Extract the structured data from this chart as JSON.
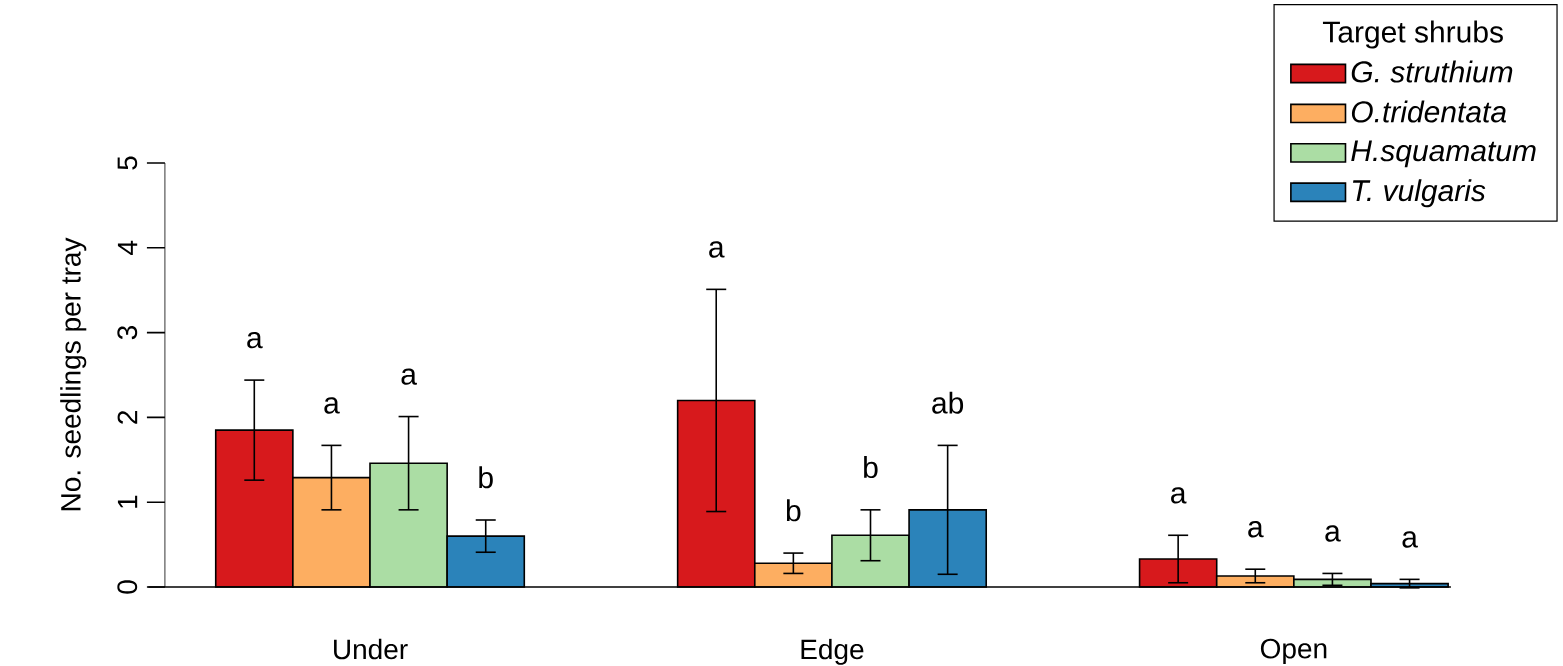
{
  "chart_data": {
    "type": "bar",
    "ylabel": "No. seedlings per tray",
    "legend_title": "Target shrubs",
    "legend": "top right",
    "categories": [
      "Under",
      "Edge",
      "Open"
    ],
    "series": [
      {
        "name": "G. struthium",
        "color": "#d7191c",
        "values": [
          1.85,
          2.2,
          0.33
        ],
        "errors": [
          0.59,
          1.31,
          0.28
        ]
      },
      {
        "name": "O.tridentata",
        "color": "#fdae61",
        "values": [
          1.29,
          0.28,
          0.13
        ],
        "errors": [
          0.38,
          0.12,
          0.08
        ]
      },
      {
        "name": "H.squamatum",
        "color": "#abdda4",
        "values": [
          1.46,
          0.61,
          0.09
        ],
        "errors": [
          0.55,
          0.3,
          0.07
        ]
      },
      {
        "name": "T. vulgaris",
        "color": "#2b83ba",
        "values": [
          0.6,
          0.91,
          0.04
        ],
        "errors": [
          0.19,
          0.76,
          0.05
        ]
      }
    ],
    "ylim": [
      0,
      5
    ],
    "yticks": [
      0,
      1,
      2,
      3,
      4,
      5
    ],
    "annotations": [
      "a",
      "a",
      "a",
      "b",
      "a",
      "b",
      "b",
      "ab",
      "a",
      "a",
      "a",
      "a"
    ]
  }
}
